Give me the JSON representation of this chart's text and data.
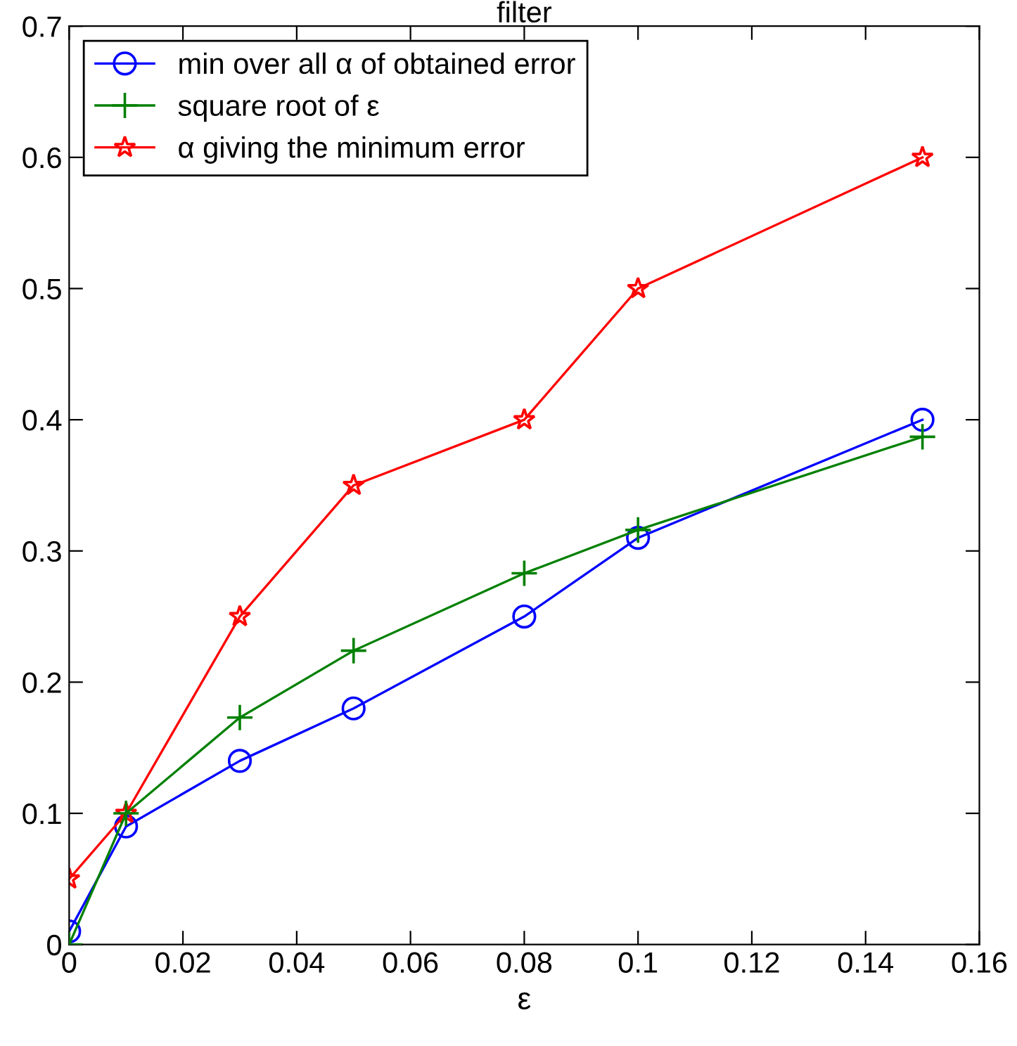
{
  "chart_data": {
    "type": "line",
    "title": "filter",
    "xlabel": "ε",
    "x": [
      0,
      0.01,
      0.03,
      0.05,
      0.08,
      0.1,
      0.15
    ],
    "series": [
      {
        "name": "min over all α of obtained error",
        "color": "#0000ff",
        "marker": "circle",
        "values": [
          0.01,
          0.09,
          0.14,
          0.18,
          0.25,
          0.31,
          0.4
        ]
      },
      {
        "name": "square root of ε",
        "color": "#008000",
        "marker": "cross",
        "values": [
          0,
          0.1,
          0.173,
          0.224,
          0.283,
          0.316,
          0.387
        ]
      },
      {
        "name": "α giving the minimum error",
        "color": "#ff0000",
        "marker": "star",
        "values": [
          0.05,
          0.1,
          0.25,
          0.35,
          0.4,
          0.5,
          0.6
        ]
      }
    ],
    "xlim": [
      0,
      0.16
    ],
    "xticks": [
      0,
      0.02,
      0.04,
      0.06,
      0.08,
      0.1,
      0.12,
      0.14,
      0.16
    ],
    "ylim": [
      0,
      0.7
    ],
    "yticks": [
      0,
      0.1,
      0.2,
      0.3,
      0.4,
      0.5,
      0.6,
      0.7
    ],
    "grid": false,
    "legend": "top left",
    "line_style": "solid"
  }
}
